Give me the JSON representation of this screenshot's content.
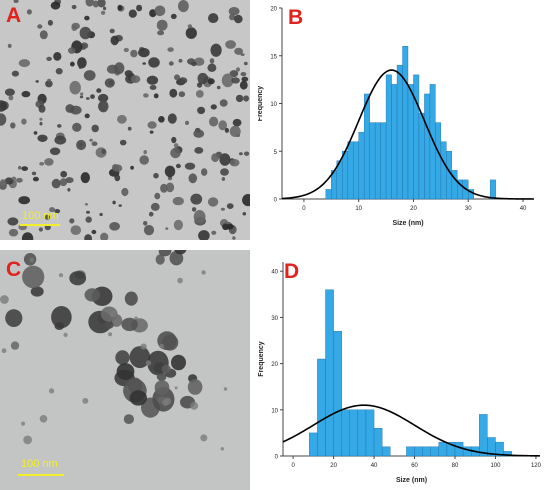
{
  "panels": {
    "a": {
      "letter": "A",
      "scale_label": "100 nm"
    },
    "b": {
      "letter": "B"
    },
    "c": {
      "letter": "C",
      "scale_label": "100 nm"
    },
    "d": {
      "letter": "D"
    }
  },
  "colors": {
    "bar": "#35a8e6",
    "bar_edge": "#1f6fa8",
    "curve": "#000000",
    "letters": "#e0231c",
    "scale_bar": "#f3ee2a"
  },
  "chart_data": [
    {
      "id": "b",
      "type": "bar",
      "xlabel": "Size (nm)",
      "ylabel": "Frequency",
      "xlim": [
        -4,
        42
      ],
      "ylim": [
        0,
        20
      ],
      "xticks": [
        0,
        10,
        20,
        30,
        40
      ],
      "yticks": [
        0,
        5,
        10,
        15,
        20
      ],
      "bin_width": 1,
      "bin_starts": [
        4,
        5,
        6,
        7,
        8,
        9,
        10,
        11,
        12,
        13,
        14,
        15,
        16,
        17,
        18,
        19,
        20,
        21,
        22,
        23,
        24,
        25,
        26,
        27,
        28,
        29,
        30,
        31,
        32,
        33,
        34
      ],
      "values": [
        1,
        3,
        4,
        5,
        6,
        6,
        7,
        11,
        8,
        8,
        8,
        13,
        12,
        14,
        16,
        12,
        13,
        9,
        11,
        12,
        8,
        6,
        5,
        3,
        2,
        2,
        1,
        0,
        0,
        0,
        2
      ],
      "fit_curve": {
        "type": "normal",
        "mean": 16,
        "sd": 6,
        "peak": 13.5
      }
    },
    {
      "id": "d",
      "type": "bar",
      "xlabel": "Size (nm)",
      "ylabel": "Frequency",
      "xlim": [
        -5,
        122
      ],
      "ylim": [
        0,
        42
      ],
      "xticks": [
        0,
        20,
        40,
        60,
        80,
        100,
        120
      ],
      "yticks": [
        0,
        10,
        20,
        30,
        40
      ],
      "bin_width": 4,
      "bin_starts": [
        8,
        12,
        16,
        20,
        24,
        28,
        32,
        36,
        40,
        44,
        48,
        52,
        56,
        60,
        64,
        68,
        72,
        76,
        80,
        84,
        88,
        92,
        96,
        100,
        104,
        108
      ],
      "values": [
        5,
        21,
        36,
        27,
        10,
        10,
        10,
        10,
        6,
        2,
        0,
        0,
        2,
        2,
        2,
        2,
        3,
        3,
        3,
        2,
        2,
        9,
        4,
        3,
        1,
        0
      ],
      "fit_curve": {
        "type": "normal",
        "mean": 35,
        "sd": 25,
        "peak": 11
      }
    }
  ]
}
